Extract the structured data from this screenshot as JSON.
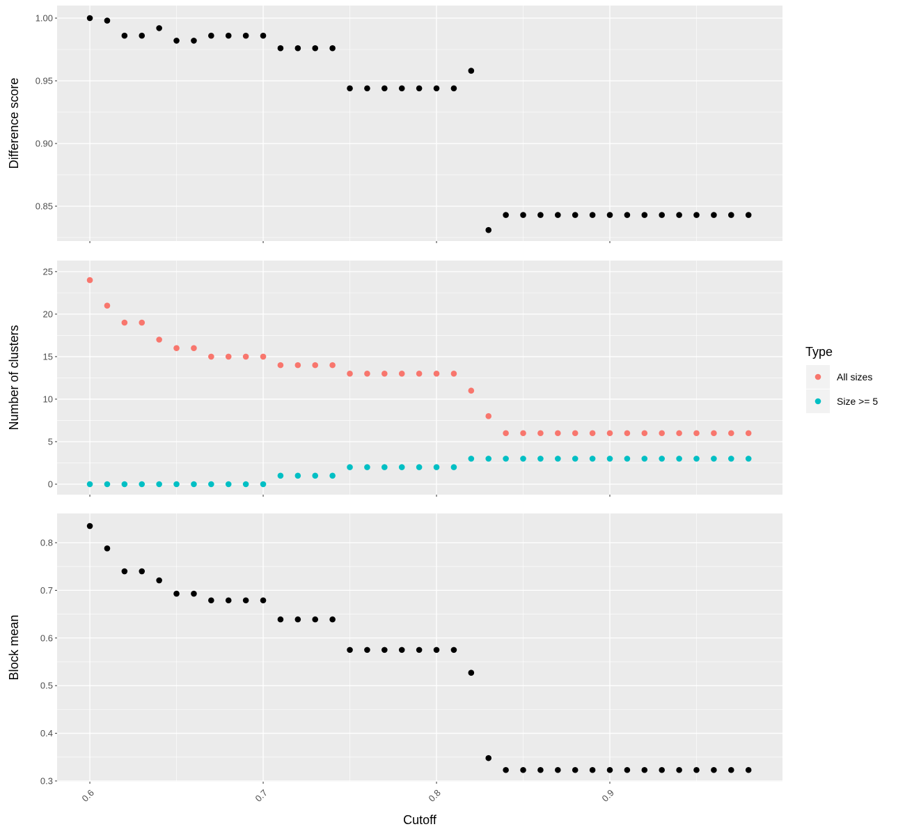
{
  "chart_data": {
    "type": "scatter",
    "xlabel": "Cutoff",
    "x_ticks": [
      "0.6",
      "0.7",
      "0.8",
      "0.9"
    ],
    "x": [
      0.6,
      0.61,
      0.62,
      0.63,
      0.64,
      0.65,
      0.66,
      0.67,
      0.68,
      0.69,
      0.7,
      0.71,
      0.72,
      0.73,
      0.74,
      0.75,
      0.76,
      0.77,
      0.78,
      0.79,
      0.8,
      0.81,
      0.82,
      0.83,
      0.84,
      0.85,
      0.86,
      0.87,
      0.88,
      0.89,
      0.9,
      0.91,
      0.92,
      0.93,
      0.94,
      0.95,
      0.96,
      0.97,
      0.98
    ],
    "xlim": [
      0.5811,
      0.9996
    ],
    "panels": [
      {
        "ylabel": "Difference score",
        "ylim": [
          0.8222,
          1.01
        ],
        "y_ticks": [
          "0.85",
          "0.90",
          "0.95",
          "1.00"
        ],
        "y_tick_values": [
          0.85,
          0.9,
          0.95,
          1.0
        ],
        "minor": [
          0.825,
          0.875,
          0.925,
          0.975
        ],
        "series": [
          {
            "name": "",
            "color": "#000000",
            "values": [
              1.0,
              0.998,
              0.986,
              0.986,
              0.992,
              0.982,
              0.982,
              0.986,
              0.986,
              0.986,
              0.986,
              0.976,
              0.976,
              0.976,
              0.976,
              0.944,
              0.944,
              0.944,
              0.944,
              0.944,
              0.944,
              0.944,
              0.958,
              0.831,
              0.843,
              0.843,
              0.843,
              0.843,
              0.843,
              0.843,
              0.843,
              0.843,
              0.843,
              0.843,
              0.843,
              0.843,
              0.843,
              0.843,
              0.843
            ]
          }
        ]
      },
      {
        "ylabel": "Number of clusters",
        "ylim": [
          -1.23,
          26.3
        ],
        "y_ticks": [
          "0",
          "5",
          "10",
          "15",
          "20",
          "25"
        ],
        "y_tick_values": [
          0,
          5,
          10,
          15,
          20,
          25
        ],
        "minor": [
          2.5,
          7.5,
          12.5,
          17.5,
          22.5
        ],
        "series": [
          {
            "name": "All sizes",
            "color": "#F8766D",
            "values": [
              24,
              21,
              19,
              19,
              17,
              16,
              16,
              15,
              15,
              15,
              15,
              14,
              14,
              14,
              14,
              13,
              13,
              13,
              13,
              13,
              13,
              13,
              11,
              8,
              6,
              6,
              6,
              6,
              6,
              6,
              6,
              6,
              6,
              6,
              6,
              6,
              6,
              6,
              6
            ]
          },
          {
            "name": "Size >= 5",
            "color": "#00BFC4",
            "values": [
              0,
              0,
              0,
              0,
              0,
              0,
              0,
              0,
              0,
              0,
              0,
              1,
              1,
              1,
              1,
              2,
              2,
              2,
              2,
              2,
              2,
              2,
              3,
              3,
              3,
              3,
              3,
              3,
              3,
              3,
              3,
              3,
              3,
              3,
              3,
              3,
              3,
              3,
              3
            ]
          }
        ]
      },
      {
        "ylabel": "Block mean",
        "ylim": [
          0.2985,
          0.8614
        ],
        "y_ticks": [
          "0.3",
          "0.4",
          "0.5",
          "0.6",
          "0.7",
          "0.8"
        ],
        "y_tick_values": [
          0.3,
          0.4,
          0.5,
          0.6,
          0.7,
          0.8
        ],
        "minor": [
          0.35,
          0.45,
          0.55,
          0.65,
          0.75
        ],
        "series": [
          {
            "name": "",
            "color": "#000000",
            "values": [
              0.835,
              0.788,
              0.74,
              0.74,
              0.721,
              0.693,
              0.693,
              0.679,
              0.679,
              0.679,
              0.679,
              0.639,
              0.639,
              0.639,
              0.639,
              0.575,
              0.575,
              0.575,
              0.575,
              0.575,
              0.575,
              0.575,
              0.527,
              0.348,
              0.323,
              0.323,
              0.323,
              0.323,
              0.323,
              0.323,
              0.323,
              0.323,
              0.323,
              0.323,
              0.323,
              0.323,
              0.323,
              0.323,
              0.323
            ]
          }
        ]
      }
    ],
    "legend": {
      "title": "Type",
      "placement": "right",
      "entries": [
        "All sizes",
        "Size >= 5"
      ]
    }
  }
}
